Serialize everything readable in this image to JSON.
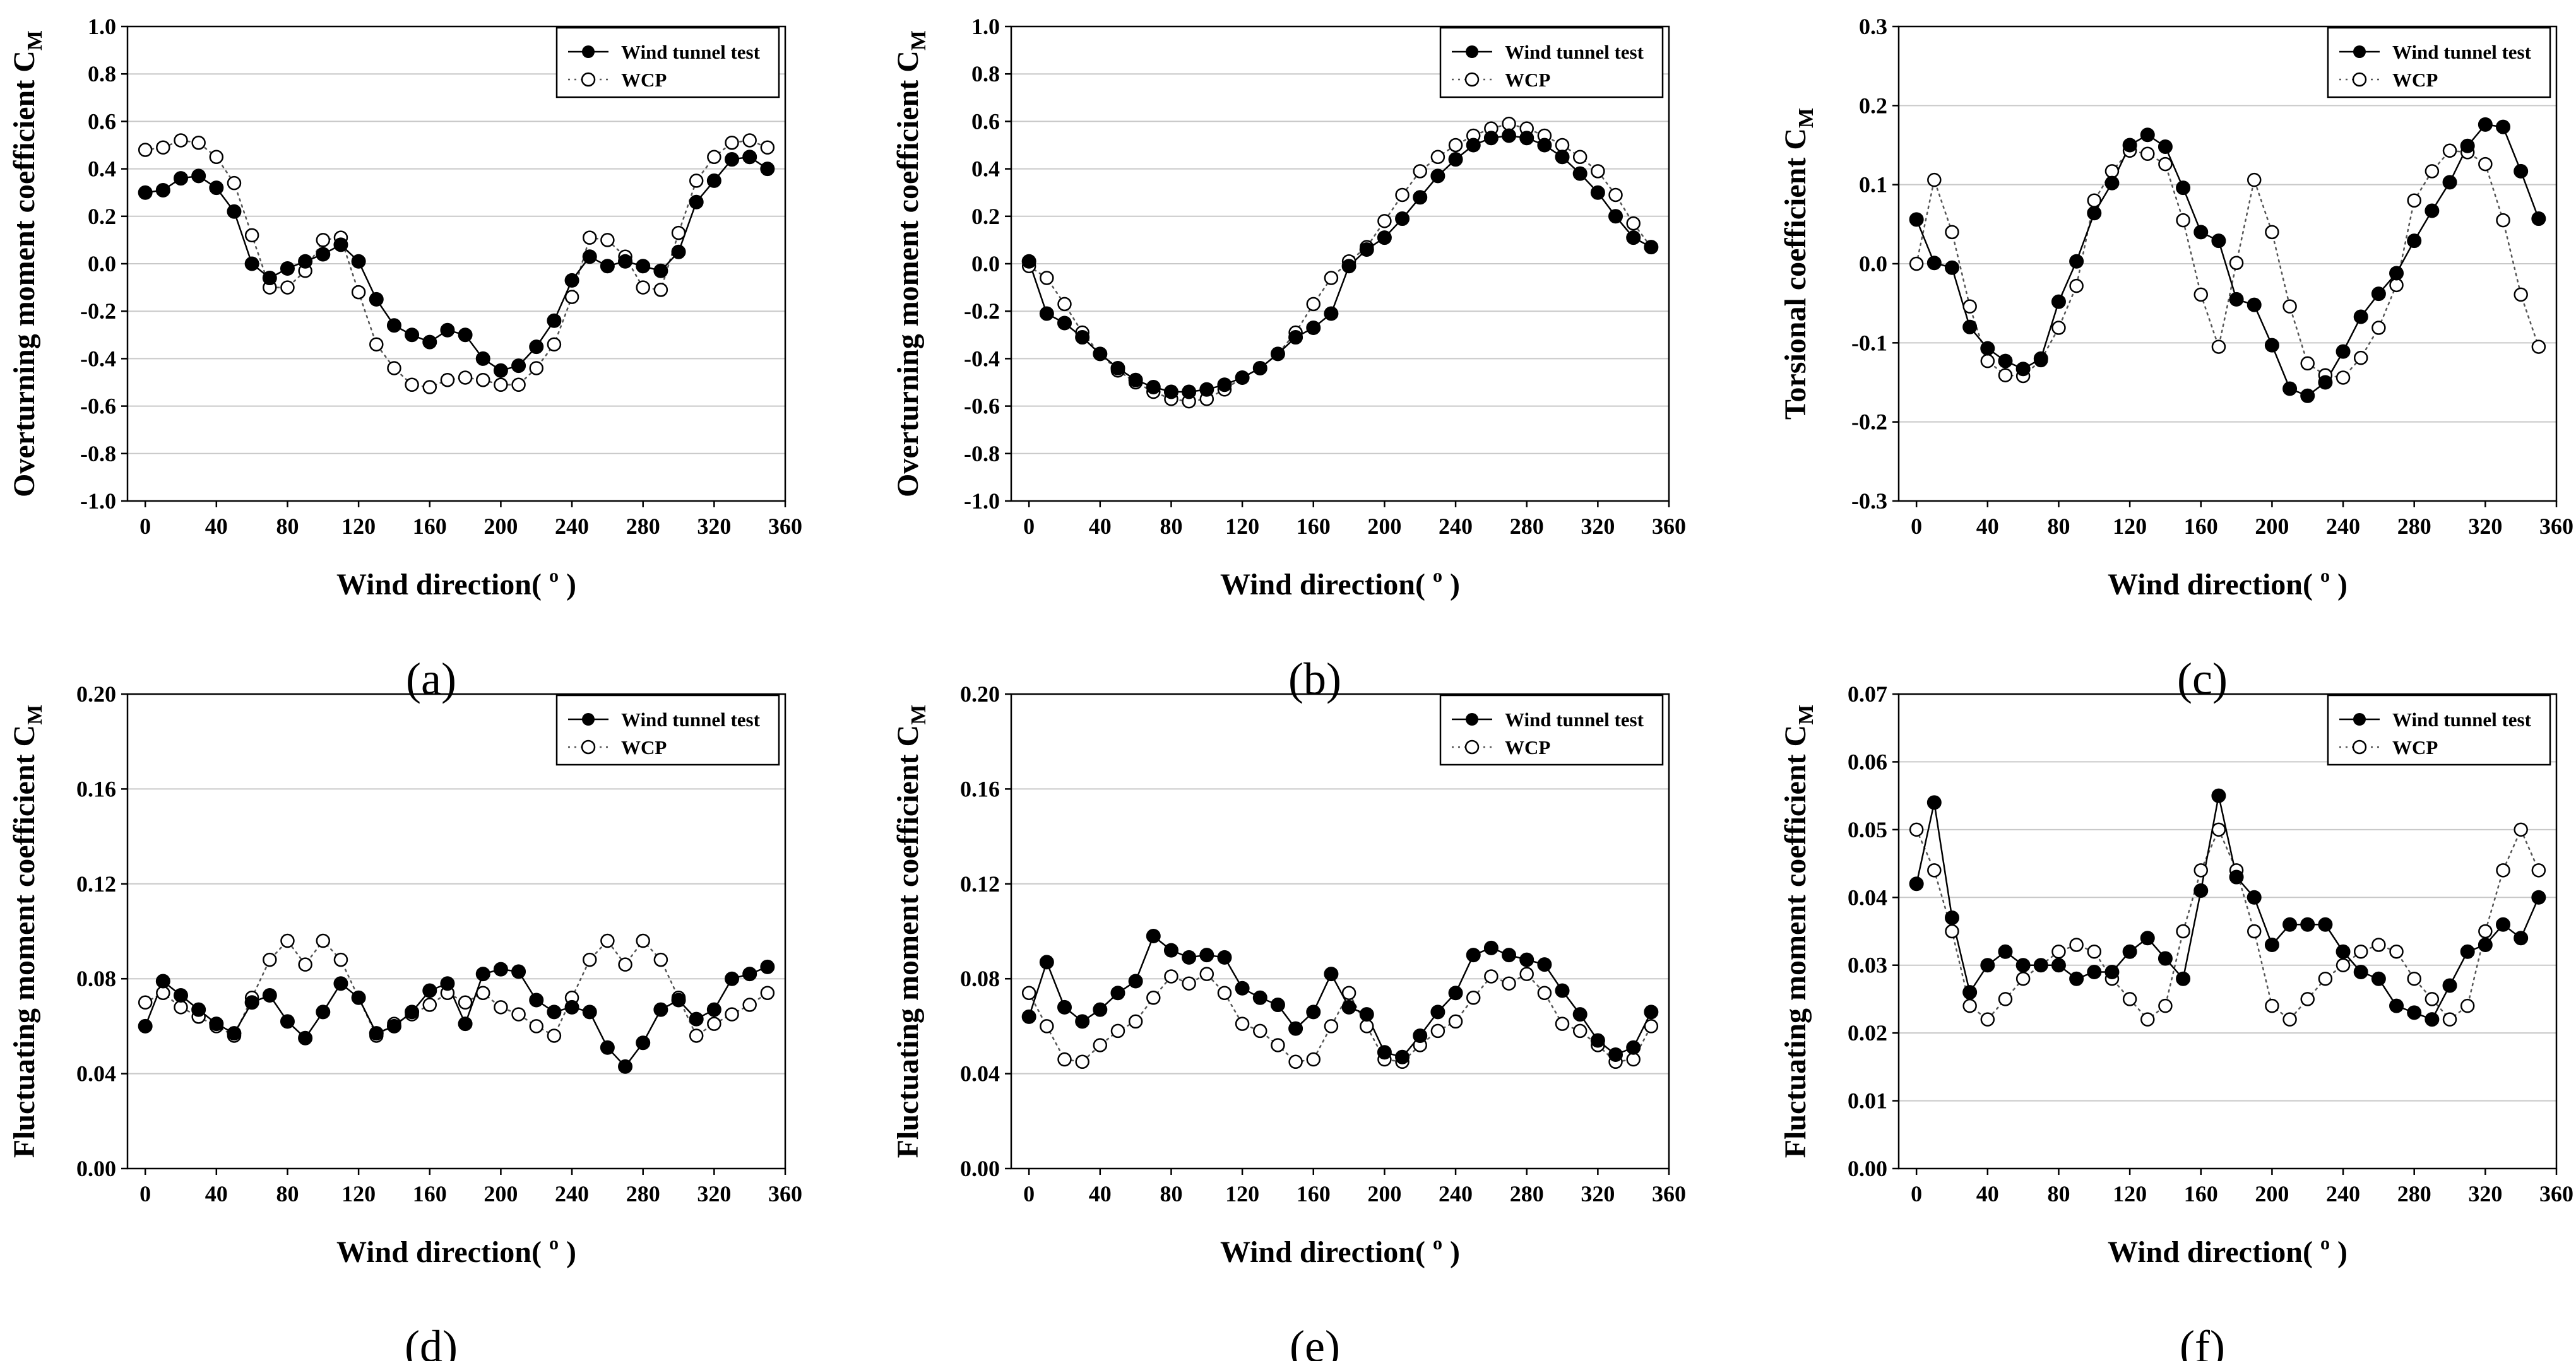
{
  "legend": {
    "solid": "Wind tunnel test",
    "open": "WCP"
  },
  "xlabel": "Wind direction( ",
  "xlabel_sup": "o",
  "xlabel_close": " )",
  "chart_data": [
    {
      "type": "line",
      "panel": "(a)",
      "ylabel": "Overturning moment coefficient C",
      "ylabel_sub": "M",
      "xlim": [
        -10,
        360
      ],
      "ylim": [
        -1.0,
        1.0
      ],
      "xticks": [
        "0",
        "40",
        "80",
        "120",
        "160",
        "200",
        "240",
        "280",
        "320",
        "360"
      ],
      "yticks": [
        "-1.0",
        "-0.8",
        "-0.6",
        "-0.4",
        "-0.2",
        "0.0",
        "0.2",
        "0.4",
        "0.6",
        "0.8",
        "1.0"
      ],
      "x": [
        0,
        10,
        20,
        30,
        40,
        50,
        60,
        70,
        80,
        90,
        100,
        110,
        120,
        130,
        140,
        150,
        160,
        170,
        180,
        190,
        200,
        210,
        220,
        230,
        240,
        250,
        260,
        270,
        280,
        290,
        300,
        310,
        320,
        330,
        340,
        350
      ],
      "series": [
        {
          "name": "Wind tunnel test",
          "values": [
            0.3,
            0.31,
            0.36,
            0.37,
            0.32,
            0.22,
            0.0,
            -0.06,
            -0.02,
            0.01,
            0.04,
            0.08,
            0.01,
            -0.15,
            -0.26,
            -0.3,
            -0.33,
            -0.28,
            -0.3,
            -0.4,
            -0.45,
            -0.43,
            -0.35,
            -0.24,
            -0.07,
            0.03,
            -0.01,
            0.01,
            -0.01,
            -0.03,
            0.05,
            0.26,
            0.35,
            0.44,
            0.45,
            0.4
          ]
        },
        {
          "name": "WCP",
          "values": [
            0.48,
            0.49,
            0.52,
            0.51,
            0.45,
            0.34,
            0.12,
            -0.1,
            -0.1,
            -0.03,
            0.1,
            0.11,
            -0.12,
            -0.34,
            -0.44,
            -0.51,
            -0.52,
            -0.49,
            -0.48,
            -0.49,
            -0.51,
            -0.51,
            -0.44,
            -0.34,
            -0.14,
            0.11,
            0.1,
            0.03,
            -0.1,
            -0.11,
            0.13,
            0.35,
            0.45,
            0.51,
            0.52,
            0.49
          ]
        }
      ]
    },
    {
      "type": "line",
      "panel": "(b)",
      "ylabel": "Overturning moment coefficient C",
      "ylabel_sub": "M",
      "xlim": [
        -10,
        360
      ],
      "ylim": [
        -1.0,
        1.0
      ],
      "xticks": [
        "0",
        "40",
        "80",
        "120",
        "160",
        "200",
        "240",
        "280",
        "320",
        "360"
      ],
      "yticks": [
        "-1.0",
        "-0.8",
        "-0.6",
        "-0.4",
        "-0.2",
        "0.0",
        "0.2",
        "0.4",
        "0.6",
        "0.8",
        "1.0"
      ],
      "x": [
        0,
        10,
        20,
        30,
        40,
        50,
        60,
        70,
        80,
        90,
        100,
        110,
        120,
        130,
        140,
        150,
        160,
        170,
        180,
        190,
        200,
        210,
        220,
        230,
        240,
        250,
        260,
        270,
        280,
        290,
        300,
        310,
        320,
        330,
        340,
        350
      ],
      "series": [
        {
          "name": "Wind tunnel test",
          "values": [
            0.01,
            -0.21,
            -0.25,
            -0.31,
            -0.38,
            -0.44,
            -0.49,
            -0.52,
            -0.54,
            -0.54,
            -0.53,
            -0.51,
            -0.48,
            -0.44,
            -0.38,
            -0.31,
            -0.27,
            -0.21,
            -0.01,
            0.06,
            0.11,
            0.19,
            0.28,
            0.37,
            0.44,
            0.5,
            0.53,
            0.54,
            0.53,
            0.5,
            0.45,
            0.38,
            0.3,
            0.2,
            0.11,
            0.07
          ]
        },
        {
          "name": "WCP",
          "values": [
            -0.01,
            -0.06,
            -0.17,
            -0.29,
            -0.38,
            -0.45,
            -0.5,
            -0.54,
            -0.57,
            -0.58,
            -0.57,
            -0.53,
            -0.48,
            -0.44,
            -0.38,
            -0.29,
            -0.17,
            -0.06,
            0.01,
            0.07,
            0.18,
            0.29,
            0.39,
            0.45,
            0.5,
            0.54,
            0.57,
            0.59,
            0.57,
            0.54,
            0.5,
            0.45,
            0.39,
            0.29,
            0.17,
            0.07
          ]
        }
      ]
    },
    {
      "type": "line",
      "panel": "(c)",
      "ylabel": "Torsional coefficient C",
      "ylabel_sub": "M",
      "xlim": [
        -10,
        360
      ],
      "ylim": [
        -0.3,
        0.3
      ],
      "xticks": [
        "0",
        "40",
        "80",
        "120",
        "160",
        "200",
        "240",
        "280",
        "320",
        "360"
      ],
      "yticks": [
        "-0.3",
        "-0.2",
        "-0.1",
        "0.0",
        "0.1",
        "0.2",
        "0.3"
      ],
      "x": [
        0,
        10,
        20,
        30,
        40,
        50,
        60,
        70,
        80,
        90,
        100,
        110,
        120,
        130,
        140,
        150,
        160,
        170,
        180,
        190,
        200,
        210,
        220,
        230,
        240,
        250,
        260,
        270,
        280,
        290,
        300,
        310,
        320,
        330,
        340,
        350
      ],
      "series": [
        {
          "name": "Wind tunnel test",
          "values": [
            0.056,
            0.001,
            -0.005,
            -0.08,
            -0.107,
            -0.123,
            -0.133,
            -0.12,
            -0.048,
            0.003,
            0.064,
            0.102,
            0.15,
            0.163,
            0.148,
            0.096,
            0.04,
            0.029,
            -0.045,
            -0.052,
            -0.103,
            -0.158,
            -0.167,
            -0.15,
            -0.111,
            -0.067,
            -0.038,
            -0.012,
            0.029,
            0.067,
            0.103,
            0.149,
            0.176,
            0.173,
            0.117,
            0.057
          ]
        },
        {
          "name": "WCP",
          "values": [
            0.0,
            0.106,
            0.04,
            -0.054,
            -0.123,
            -0.141,
            -0.142,
            -0.122,
            -0.081,
            -0.028,
            0.08,
            0.117,
            0.143,
            0.139,
            0.126,
            0.055,
            -0.039,
            -0.105,
            0.001,
            0.106,
            0.04,
            -0.054,
            -0.126,
            -0.141,
            -0.144,
            -0.119,
            -0.081,
            -0.027,
            0.08,
            0.117,
            0.143,
            0.141,
            0.126,
            0.055,
            -0.039,
            -0.105
          ]
        }
      ]
    },
    {
      "type": "line",
      "panel": "(d)",
      "ylabel": "Fluctuating moment coefficient C",
      "ylabel_sub": "M",
      "xlim": [
        -10,
        360
      ],
      "ylim": [
        0,
        0.2
      ],
      "xticks": [
        "0",
        "40",
        "80",
        "120",
        "160",
        "200",
        "240",
        "280",
        "320",
        "360"
      ],
      "yticks": [
        "0.00",
        "0.04",
        "0.08",
        "0.12",
        "0.16",
        "0.20"
      ],
      "x": [
        0,
        10,
        20,
        30,
        40,
        50,
        60,
        70,
        80,
        90,
        100,
        110,
        120,
        130,
        140,
        150,
        160,
        170,
        180,
        190,
        200,
        210,
        220,
        230,
        240,
        250,
        260,
        270,
        280,
        290,
        300,
        310,
        320,
        330,
        340,
        350
      ],
      "series": [
        {
          "name": "Wind tunnel test",
          "values": [
            0.06,
            0.079,
            0.073,
            0.067,
            0.061,
            0.057,
            0.07,
            0.073,
            0.062,
            0.055,
            0.066,
            0.078,
            0.072,
            0.057,
            0.06,
            0.066,
            0.075,
            0.078,
            0.061,
            0.082,
            0.084,
            0.083,
            0.071,
            0.066,
            0.068,
            0.066,
            0.051,
            0.043,
            0.053,
            0.067,
            0.071,
            0.063,
            0.067,
            0.08,
            0.082,
            0.085
          ]
        },
        {
          "name": "WCP",
          "values": [
            0.07,
            0.074,
            0.068,
            0.064,
            0.06,
            0.056,
            0.072,
            0.088,
            0.096,
            0.086,
            0.096,
            0.088,
            0.072,
            0.056,
            0.061,
            0.065,
            0.069,
            0.074,
            0.07,
            0.074,
            0.068,
            0.065,
            0.06,
            0.056,
            0.072,
            0.088,
            0.096,
            0.086,
            0.096,
            0.088,
            0.072,
            0.056,
            0.061,
            0.065,
            0.069,
            0.074
          ]
        }
      ]
    },
    {
      "type": "line",
      "panel": "(e)",
      "ylabel": "Fluctuating moment coefficient C",
      "ylabel_sub": "M",
      "xlim": [
        -10,
        360
      ],
      "ylim": [
        0,
        0.2
      ],
      "xticks": [
        "0",
        "40",
        "80",
        "120",
        "160",
        "200",
        "240",
        "280",
        "320",
        "360"
      ],
      "yticks": [
        "0.00",
        "0.04",
        "0.08",
        "0.12",
        "0.16",
        "0.20"
      ],
      "x": [
        0,
        10,
        20,
        30,
        40,
        50,
        60,
        70,
        80,
        90,
        100,
        110,
        120,
        130,
        140,
        150,
        160,
        170,
        180,
        190,
        200,
        210,
        220,
        230,
        240,
        250,
        260,
        270,
        280,
        290,
        300,
        310,
        320,
        330,
        340,
        350
      ],
      "series": [
        {
          "name": "Wind tunnel test",
          "values": [
            0.064,
            0.087,
            0.068,
            0.062,
            0.067,
            0.074,
            0.079,
            0.098,
            0.092,
            0.089,
            0.09,
            0.089,
            0.076,
            0.072,
            0.069,
            0.059,
            0.066,
            0.082,
            0.068,
            0.065,
            0.049,
            0.047,
            0.056,
            0.066,
            0.074,
            0.09,
            0.093,
            0.09,
            0.088,
            0.086,
            0.075,
            0.065,
            0.054,
            0.048,
            0.051,
            0.066
          ]
        },
        {
          "name": "WCP",
          "values": [
            0.074,
            0.06,
            0.046,
            0.045,
            0.052,
            0.058,
            0.062,
            0.072,
            0.081,
            0.078,
            0.082,
            0.074,
            0.061,
            0.058,
            0.052,
            0.045,
            0.046,
            0.06,
            0.074,
            0.06,
            0.046,
            0.045,
            0.052,
            0.058,
            0.062,
            0.072,
            0.081,
            0.078,
            0.082,
            0.074,
            0.061,
            0.058,
            0.052,
            0.045,
            0.046,
            0.06
          ]
        }
      ]
    },
    {
      "type": "line",
      "panel": "(f)",
      "ylabel": "Fluctuating moment coefficient C",
      "ylabel_sub": "M",
      "xlim": [
        -10,
        360
      ],
      "ylim": [
        0,
        0.07
      ],
      "xticks": [
        "0",
        "40",
        "80",
        "120",
        "160",
        "200",
        "240",
        "280",
        "320",
        "360"
      ],
      "yticks": [
        "0.00",
        "0.01",
        "0.02",
        "0.03",
        "0.04",
        "0.05",
        "0.06",
        "0.07"
      ],
      "x": [
        0,
        10,
        20,
        30,
        40,
        50,
        60,
        70,
        80,
        90,
        100,
        110,
        120,
        130,
        140,
        150,
        160,
        170,
        180,
        190,
        200,
        210,
        220,
        230,
        240,
        250,
        260,
        270,
        280,
        290,
        300,
        310,
        320,
        330,
        340,
        350
      ],
      "series": [
        {
          "name": "Wind tunnel test",
          "values": [
            0.042,
            0.054,
            0.037,
            0.026,
            0.03,
            0.032,
            0.03,
            0.03,
            0.03,
            0.028,
            0.029,
            0.029,
            0.032,
            0.034,
            0.031,
            0.028,
            0.041,
            0.055,
            0.043,
            0.04,
            0.033,
            0.036,
            0.036,
            0.036,
            0.032,
            0.029,
            0.028,
            0.024,
            0.023,
            0.022,
            0.027,
            0.032,
            0.033,
            0.036,
            0.034,
            0.04
          ]
        },
        {
          "name": "WCP",
          "values": [
            0.05,
            0.044,
            0.035,
            0.024,
            0.022,
            0.025,
            0.028,
            0.03,
            0.032,
            0.033,
            0.032,
            0.028,
            0.025,
            0.022,
            0.024,
            0.035,
            0.044,
            0.05,
            0.044,
            0.035,
            0.024,
            0.022,
            0.025,
            0.028,
            0.03,
            0.032,
            0.033,
            0.032,
            0.028,
            0.025,
            0.022,
            0.024,
            0.035,
            0.044,
            0.05,
            0.044
          ]
        }
      ]
    }
  ]
}
